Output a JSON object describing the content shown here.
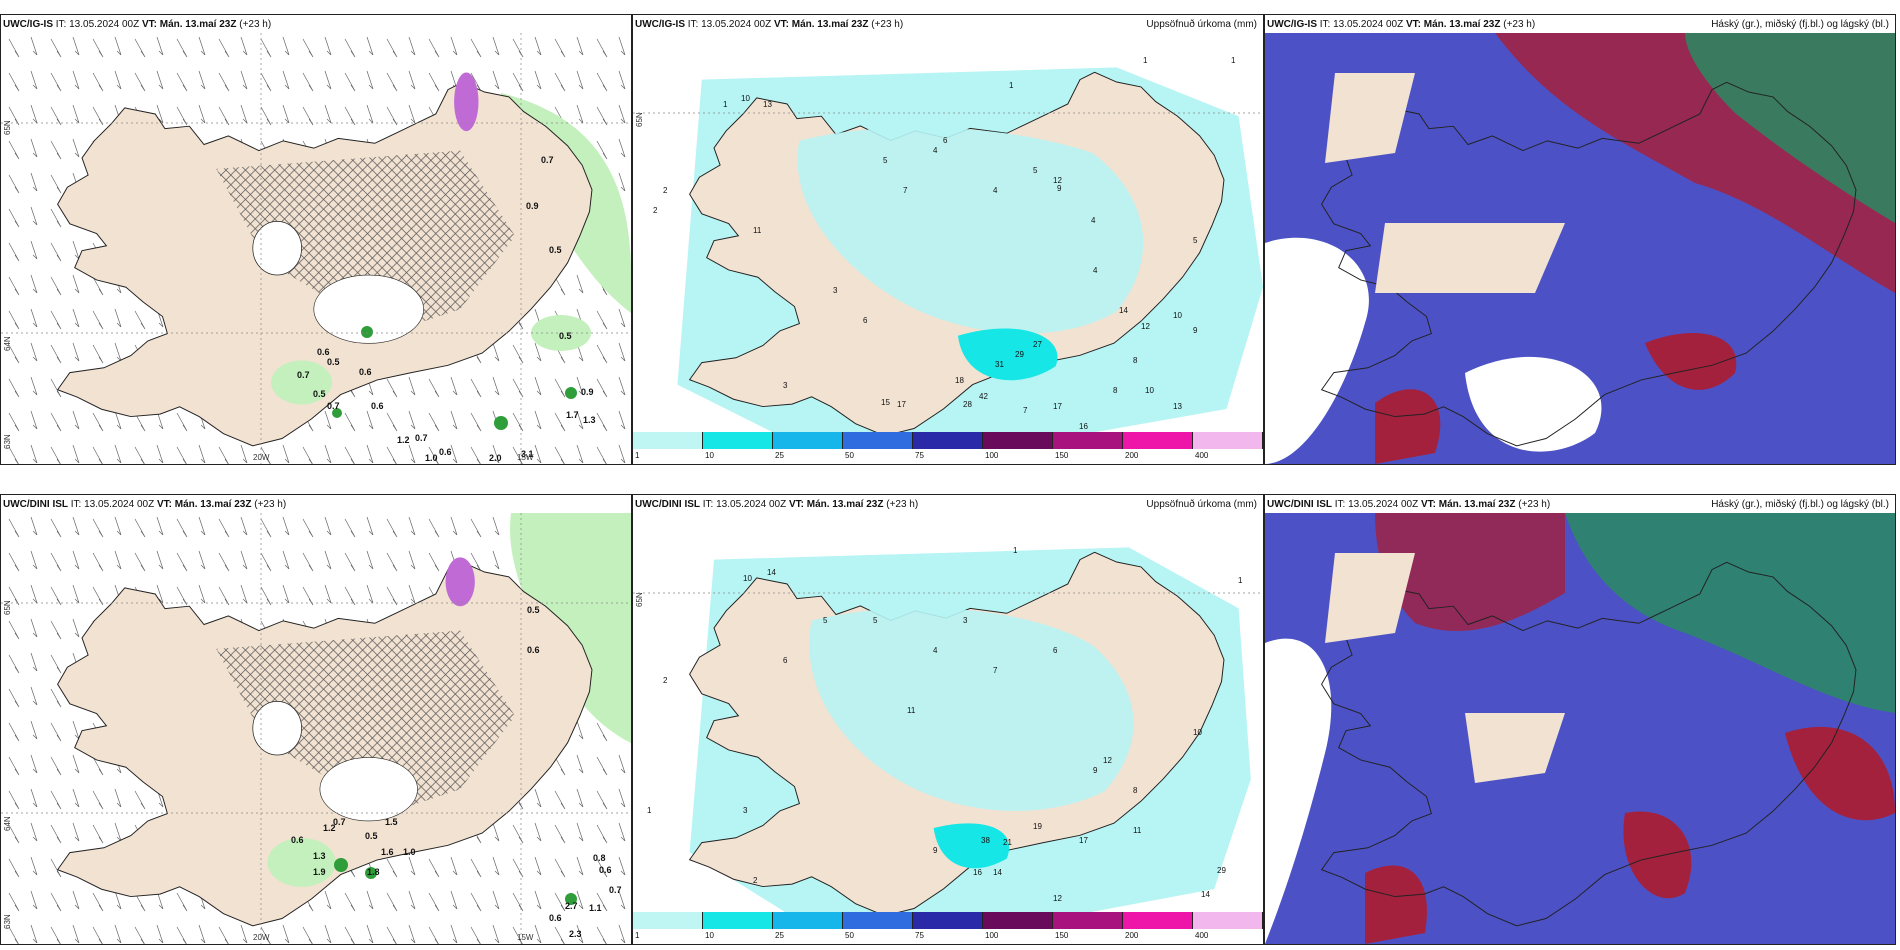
{
  "colors": {
    "land": "#f2e2d2",
    "sea": "#ffffff",
    "coast": "#222222",
    "precip_light": "#b7f4f4",
    "green_light": "#c3f0bc",
    "green_dark": "#2f9d3a",
    "purple": "#c06ad6",
    "blue_cloud": "#4c52c6",
    "red_cloud": "#a3213d",
    "green_cloud": "#2a8a62"
  },
  "colorbar": {
    "ticks": [
      "1",
      "10",
      "25",
      "50",
      "75",
      "100",
      "150",
      "200",
      "400"
    ],
    "colors": [
      "#bff6f4",
      "#16e6e6",
      "#16b6ea",
      "#2e6ce0",
      "#2a2aa8",
      "#6a0a5a",
      "#a8127e",
      "#ee16a8",
      "#f2b8ee"
    ]
  },
  "panels": {
    "top_left": {
      "model": "UWC/IG-IS",
      "it_text": "IT: 13.05.2024 00Z",
      "vt_text": "VT: Mán. 13.maí 23Z",
      "lead": "(+23 h)",
      "lat_labels": [
        "65N",
        "64N",
        "63N"
      ],
      "lon_labels": [
        "20W",
        "15W"
      ],
      "values": [
        "0.7",
        "0.9",
        "0.5",
        "0.5",
        "0.6",
        "0.5",
        "0.6",
        "0.7",
        "0.5",
        "0.7",
        "0.6",
        "1.2",
        "0.7",
        "0.6",
        "1.0",
        "2.0",
        "3.1",
        "0.9",
        "1.7",
        "1.3"
      ]
    },
    "top_mid": {
      "model": "UWC/IG-IS",
      "it_text": "IT: 13.05.2024 00Z",
      "vt_text": "VT: Mán. 13.maí 23Z",
      "lead": "(+23 h)",
      "right_title": "Uppsöfnuð úrkoma (mm)",
      "lat_label": "65N",
      "values": [
        "1",
        "1",
        "10",
        "13",
        "1",
        "2",
        "11",
        "4",
        "5",
        "4",
        "7",
        "6",
        "5",
        "12",
        "9",
        "4",
        "14",
        "12",
        "10",
        "9",
        "27",
        "29",
        "31",
        "18",
        "42",
        "28",
        "17",
        "16",
        "15",
        "17",
        "13",
        "10",
        "7",
        "8",
        "5",
        "3",
        "2",
        "6",
        "4",
        "8",
        "3",
        "1"
      ]
    },
    "top_right": {
      "model": "UWC/IG-IS",
      "it_text": "IT: 13.05.2024 00Z",
      "vt_text": "VT: Mán. 13.maí 23Z",
      "lead": "(+23 h)",
      "right_title": "Háský (gr.), miðský (fj.bl.) og lágský (bl.)"
    },
    "bottom_left": {
      "model": "UWC/DINI ISL",
      "it_text": "IT: 13.05.2024 00Z",
      "vt_text": "VT: Mán. 13.maí 23Z",
      "lead": "(+23 h)",
      "lat_labels": [
        "65N",
        "64N",
        "63N"
      ],
      "lon_labels": [
        "20W",
        "15W"
      ],
      "values": [
        "0.5",
        "0.6",
        "0.7",
        "0.6",
        "1.2",
        "1.5",
        "0.5",
        "1.0",
        "1.6",
        "1.3",
        "1.8",
        "0.8",
        "0.6",
        "0.7",
        "1.1",
        "2.7",
        "2.3",
        "0.6",
        "1.9"
      ]
    },
    "bottom_mid": {
      "model": "UWC/DINI ISL",
      "it_text": "IT: 13.05.2024 00Z",
      "vt_text": "VT: Mán. 13.maí 23Z",
      "lead": "(+23 h)",
      "right_title": "Uppsöfnuð úrkoma (mm)",
      "lat_label": "65N",
      "values": [
        "1",
        "1",
        "10",
        "14",
        "11",
        "2",
        "5",
        "4",
        "7",
        "6",
        "3",
        "12",
        "9",
        "8",
        "10",
        "11",
        "19",
        "21",
        "38",
        "17",
        "14",
        "16",
        "12",
        "29",
        "14",
        "9",
        "5",
        "6",
        "3",
        "2",
        "1"
      ]
    },
    "bottom_right": {
      "model": "UWC/DINI ISL",
      "it_text": "IT: 13.05.2024 00Z",
      "vt_text": "VT: Mán. 13.maí 23Z",
      "lead": "(+23 h)",
      "right_title": "Háský (gr.), miðský (fj.bl.) og lágský (bl.)"
    }
  }
}
